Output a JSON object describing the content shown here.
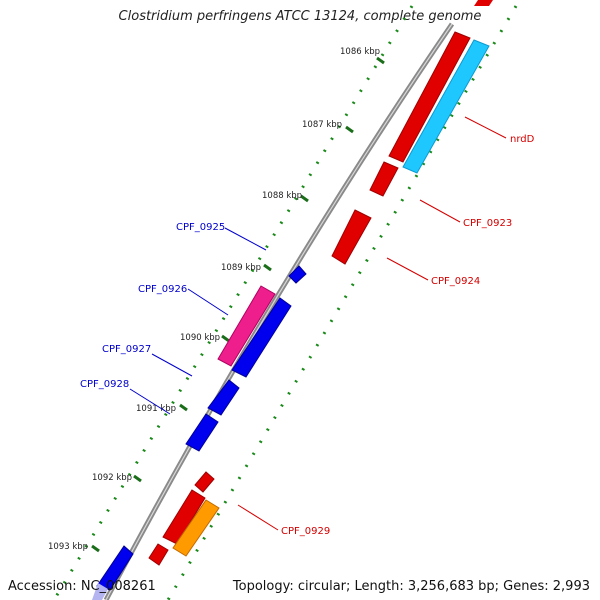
{
  "title": "Clostridium perfringens ATCC 13124, complete genome",
  "footer": {
    "accession": "Accession: NC_008261",
    "summary": "Topology: circular; Length: 3,256,683 bp; Genes: 2,993"
  },
  "ticks": [
    {
      "label": "1086 kbp"
    },
    {
      "label": "1087 kbp"
    },
    {
      "label": "1088 kbp"
    },
    {
      "label": "1089 kbp"
    },
    {
      "label": "1090 kbp"
    },
    {
      "label": "1091 kbp"
    },
    {
      "label": "1092 kbp"
    },
    {
      "label": "1093 kbp"
    }
  ],
  "genes": [
    {
      "name": "nrdD",
      "strand": "forward",
      "color": "#e00000"
    },
    {
      "name": "CPF_0923",
      "strand": "forward",
      "color": "#e00000"
    },
    {
      "name": "CPF_0924",
      "strand": "forward",
      "color": "#e00000"
    },
    {
      "name": "CPF_0925",
      "strand": "reverse",
      "color": "#0000ee"
    },
    {
      "name": "CPF_0926",
      "strand": "reverse",
      "color": "#ee1e8c"
    },
    {
      "name": "CPF_0927",
      "strand": "reverse",
      "color": "#0000ee"
    },
    {
      "name": "CPF_0928",
      "strand": "reverse",
      "color": "#0000ee"
    },
    {
      "name": "CPF_0929",
      "strand": "forward",
      "color": "#e00000"
    }
  ],
  "colors": {
    "forward_label": "#d40000",
    "reverse_label": "#0000cc",
    "backbone": "#8a8a8a",
    "dots": "#1a8a1a",
    "cyan_feature": "#1ec8ff",
    "orange_feature": "#ff9a00"
  }
}
